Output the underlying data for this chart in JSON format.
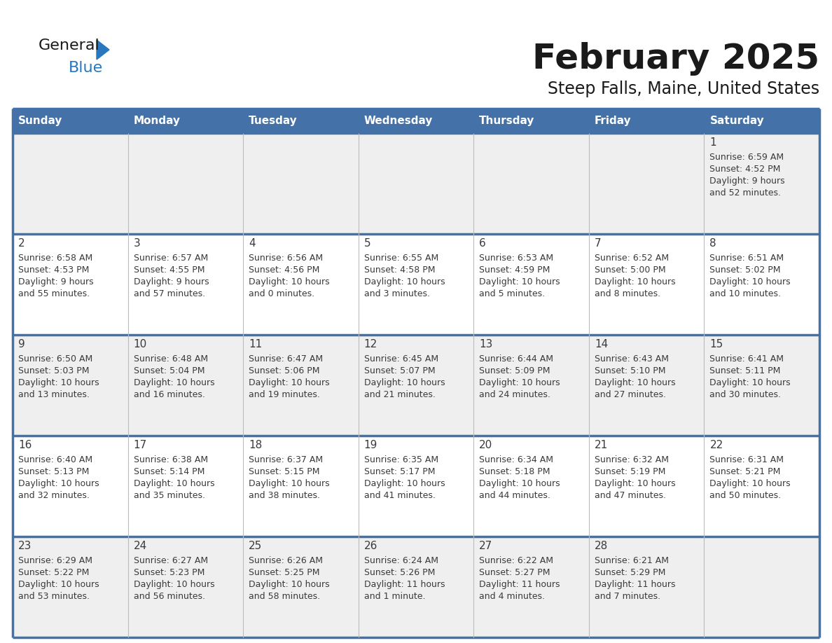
{
  "title": "February 2025",
  "subtitle": "Steep Falls, Maine, United States",
  "header_color": "#4472A8",
  "header_text_color": "#FFFFFF",
  "day_names": [
    "Sunday",
    "Monday",
    "Tuesday",
    "Wednesday",
    "Thursday",
    "Friday",
    "Saturday"
  ],
  "title_color": "#1a1a1a",
  "subtitle_color": "#1a1a1a",
  "cell_bg_even": "#efefef",
  "cell_bg_odd": "#ffffff",
  "cell_line_color": "#4472A8",
  "cell_sep_color": "#cccccc",
  "day_num_color": "#3a3a3a",
  "info_color": "#3a3a3a",
  "logo_general_color": "#1a1a1a",
  "logo_blue_color": "#2878c0",
  "logo_triangle_color": "#2878c0",
  "title_fontsize": 36,
  "subtitle_fontsize": 17,
  "header_fontsize": 11,
  "daynum_fontsize": 11,
  "info_fontsize": 9,
  "days_data": [
    {
      "day": 1,
      "col": 6,
      "row": 0,
      "sunrise": "6:59 AM",
      "sunset": "4:52 PM",
      "daylight": "9 hours and 52 minutes."
    },
    {
      "day": 2,
      "col": 0,
      "row": 1,
      "sunrise": "6:58 AM",
      "sunset": "4:53 PM",
      "daylight": "9 hours and 55 minutes."
    },
    {
      "day": 3,
      "col": 1,
      "row": 1,
      "sunrise": "6:57 AM",
      "sunset": "4:55 PM",
      "daylight": "9 hours and 57 minutes."
    },
    {
      "day": 4,
      "col": 2,
      "row": 1,
      "sunrise": "6:56 AM",
      "sunset": "4:56 PM",
      "daylight": "10 hours and 0 minutes."
    },
    {
      "day": 5,
      "col": 3,
      "row": 1,
      "sunrise": "6:55 AM",
      "sunset": "4:58 PM",
      "daylight": "10 hours and 3 minutes."
    },
    {
      "day": 6,
      "col": 4,
      "row": 1,
      "sunrise": "6:53 AM",
      "sunset": "4:59 PM",
      "daylight": "10 hours and 5 minutes."
    },
    {
      "day": 7,
      "col": 5,
      "row": 1,
      "sunrise": "6:52 AM",
      "sunset": "5:00 PM",
      "daylight": "10 hours and 8 minutes."
    },
    {
      "day": 8,
      "col": 6,
      "row": 1,
      "sunrise": "6:51 AM",
      "sunset": "5:02 PM",
      "daylight": "10 hours and 10 minutes."
    },
    {
      "day": 9,
      "col": 0,
      "row": 2,
      "sunrise": "6:50 AM",
      "sunset": "5:03 PM",
      "daylight": "10 hours and 13 minutes."
    },
    {
      "day": 10,
      "col": 1,
      "row": 2,
      "sunrise": "6:48 AM",
      "sunset": "5:04 PM",
      "daylight": "10 hours and 16 minutes."
    },
    {
      "day": 11,
      "col": 2,
      "row": 2,
      "sunrise": "6:47 AM",
      "sunset": "5:06 PM",
      "daylight": "10 hours and 19 minutes."
    },
    {
      "day": 12,
      "col": 3,
      "row": 2,
      "sunrise": "6:45 AM",
      "sunset": "5:07 PM",
      "daylight": "10 hours and 21 minutes."
    },
    {
      "day": 13,
      "col": 4,
      "row": 2,
      "sunrise": "6:44 AM",
      "sunset": "5:09 PM",
      "daylight": "10 hours and 24 minutes."
    },
    {
      "day": 14,
      "col": 5,
      "row": 2,
      "sunrise": "6:43 AM",
      "sunset": "5:10 PM",
      "daylight": "10 hours and 27 minutes."
    },
    {
      "day": 15,
      "col": 6,
      "row": 2,
      "sunrise": "6:41 AM",
      "sunset": "5:11 PM",
      "daylight": "10 hours and 30 minutes."
    },
    {
      "day": 16,
      "col": 0,
      "row": 3,
      "sunrise": "6:40 AM",
      "sunset": "5:13 PM",
      "daylight": "10 hours and 32 minutes."
    },
    {
      "day": 17,
      "col": 1,
      "row": 3,
      "sunrise": "6:38 AM",
      "sunset": "5:14 PM",
      "daylight": "10 hours and 35 minutes."
    },
    {
      "day": 18,
      "col": 2,
      "row": 3,
      "sunrise": "6:37 AM",
      "sunset": "5:15 PM",
      "daylight": "10 hours and 38 minutes."
    },
    {
      "day": 19,
      "col": 3,
      "row": 3,
      "sunrise": "6:35 AM",
      "sunset": "5:17 PM",
      "daylight": "10 hours and 41 minutes."
    },
    {
      "day": 20,
      "col": 4,
      "row": 3,
      "sunrise": "6:34 AM",
      "sunset": "5:18 PM",
      "daylight": "10 hours and 44 minutes."
    },
    {
      "day": 21,
      "col": 5,
      "row": 3,
      "sunrise": "6:32 AM",
      "sunset": "5:19 PM",
      "daylight": "10 hours and 47 minutes."
    },
    {
      "day": 22,
      "col": 6,
      "row": 3,
      "sunrise": "6:31 AM",
      "sunset": "5:21 PM",
      "daylight": "10 hours and 50 minutes."
    },
    {
      "day": 23,
      "col": 0,
      "row": 4,
      "sunrise": "6:29 AM",
      "sunset": "5:22 PM",
      "daylight": "10 hours and 53 minutes."
    },
    {
      "day": 24,
      "col": 1,
      "row": 4,
      "sunrise": "6:27 AM",
      "sunset": "5:23 PM",
      "daylight": "10 hours and 56 minutes."
    },
    {
      "day": 25,
      "col": 2,
      "row": 4,
      "sunrise": "6:26 AM",
      "sunset": "5:25 PM",
      "daylight": "10 hours and 58 minutes."
    },
    {
      "day": 26,
      "col": 3,
      "row": 4,
      "sunrise": "6:24 AM",
      "sunset": "5:26 PM",
      "daylight": "11 hours and 1 minute."
    },
    {
      "day": 27,
      "col": 4,
      "row": 4,
      "sunrise": "6:22 AM",
      "sunset": "5:27 PM",
      "daylight": "11 hours and 4 minutes."
    },
    {
      "day": 28,
      "col": 5,
      "row": 4,
      "sunrise": "6:21 AM",
      "sunset": "5:29 PM",
      "daylight": "11 hours and 7 minutes."
    }
  ]
}
